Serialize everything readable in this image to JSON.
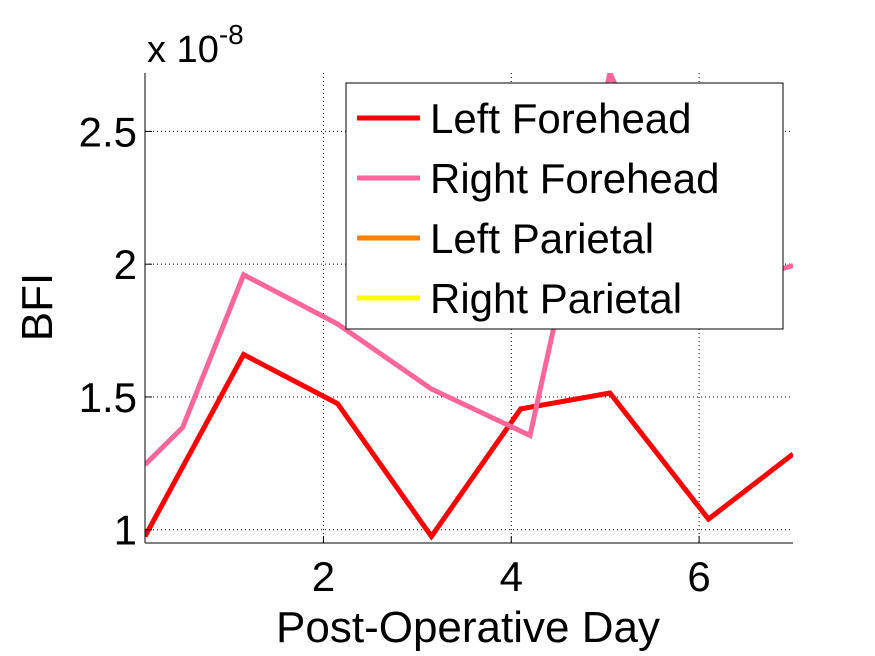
{
  "chart_data": {
    "type": "line",
    "title": "",
    "xlabel": "Post-Operative Day",
    "ylabel": "BFI",
    "exponent_label": {
      "base": "x 10",
      "power": "-8"
    },
    "xlim": [
      0.1,
      7
    ],
    "ylim": [
      0.95,
      2.72
    ],
    "xticks": [
      2,
      4,
      6
    ],
    "yticks": [
      1,
      1.5,
      2,
      2.5
    ],
    "ytick_labels": [
      "1",
      "1.5",
      "2",
      "2.5"
    ],
    "grid": true,
    "legend_position": "top-right",
    "series": [
      {
        "name": "Left Forehead",
        "color": "#ff0000",
        "x": [
          0.1,
          1.15,
          2.15,
          3.15,
          4.1,
          5.05,
          6.1,
          7.0
        ],
        "y": [
          0.975,
          1.66,
          1.475,
          0.975,
          1.455,
          1.515,
          1.04,
          1.285
        ]
      },
      {
        "name": "Right Forehead",
        "color": "#ff6699",
        "x": [
          0.1,
          0.5,
          1.15,
          2.15,
          3.15,
          4.2,
          5.05,
          6.1,
          7.0
        ],
        "y": [
          1.245,
          1.385,
          1.96,
          1.775,
          1.53,
          1.355,
          2.72,
          1.9,
          1.995
        ]
      },
      {
        "name": "Left Parietal",
        "color": "#ff8000",
        "x": [],
        "y": []
      },
      {
        "name": "Right Parietal",
        "color": "#ffff00",
        "x": [],
        "y": []
      }
    ]
  }
}
